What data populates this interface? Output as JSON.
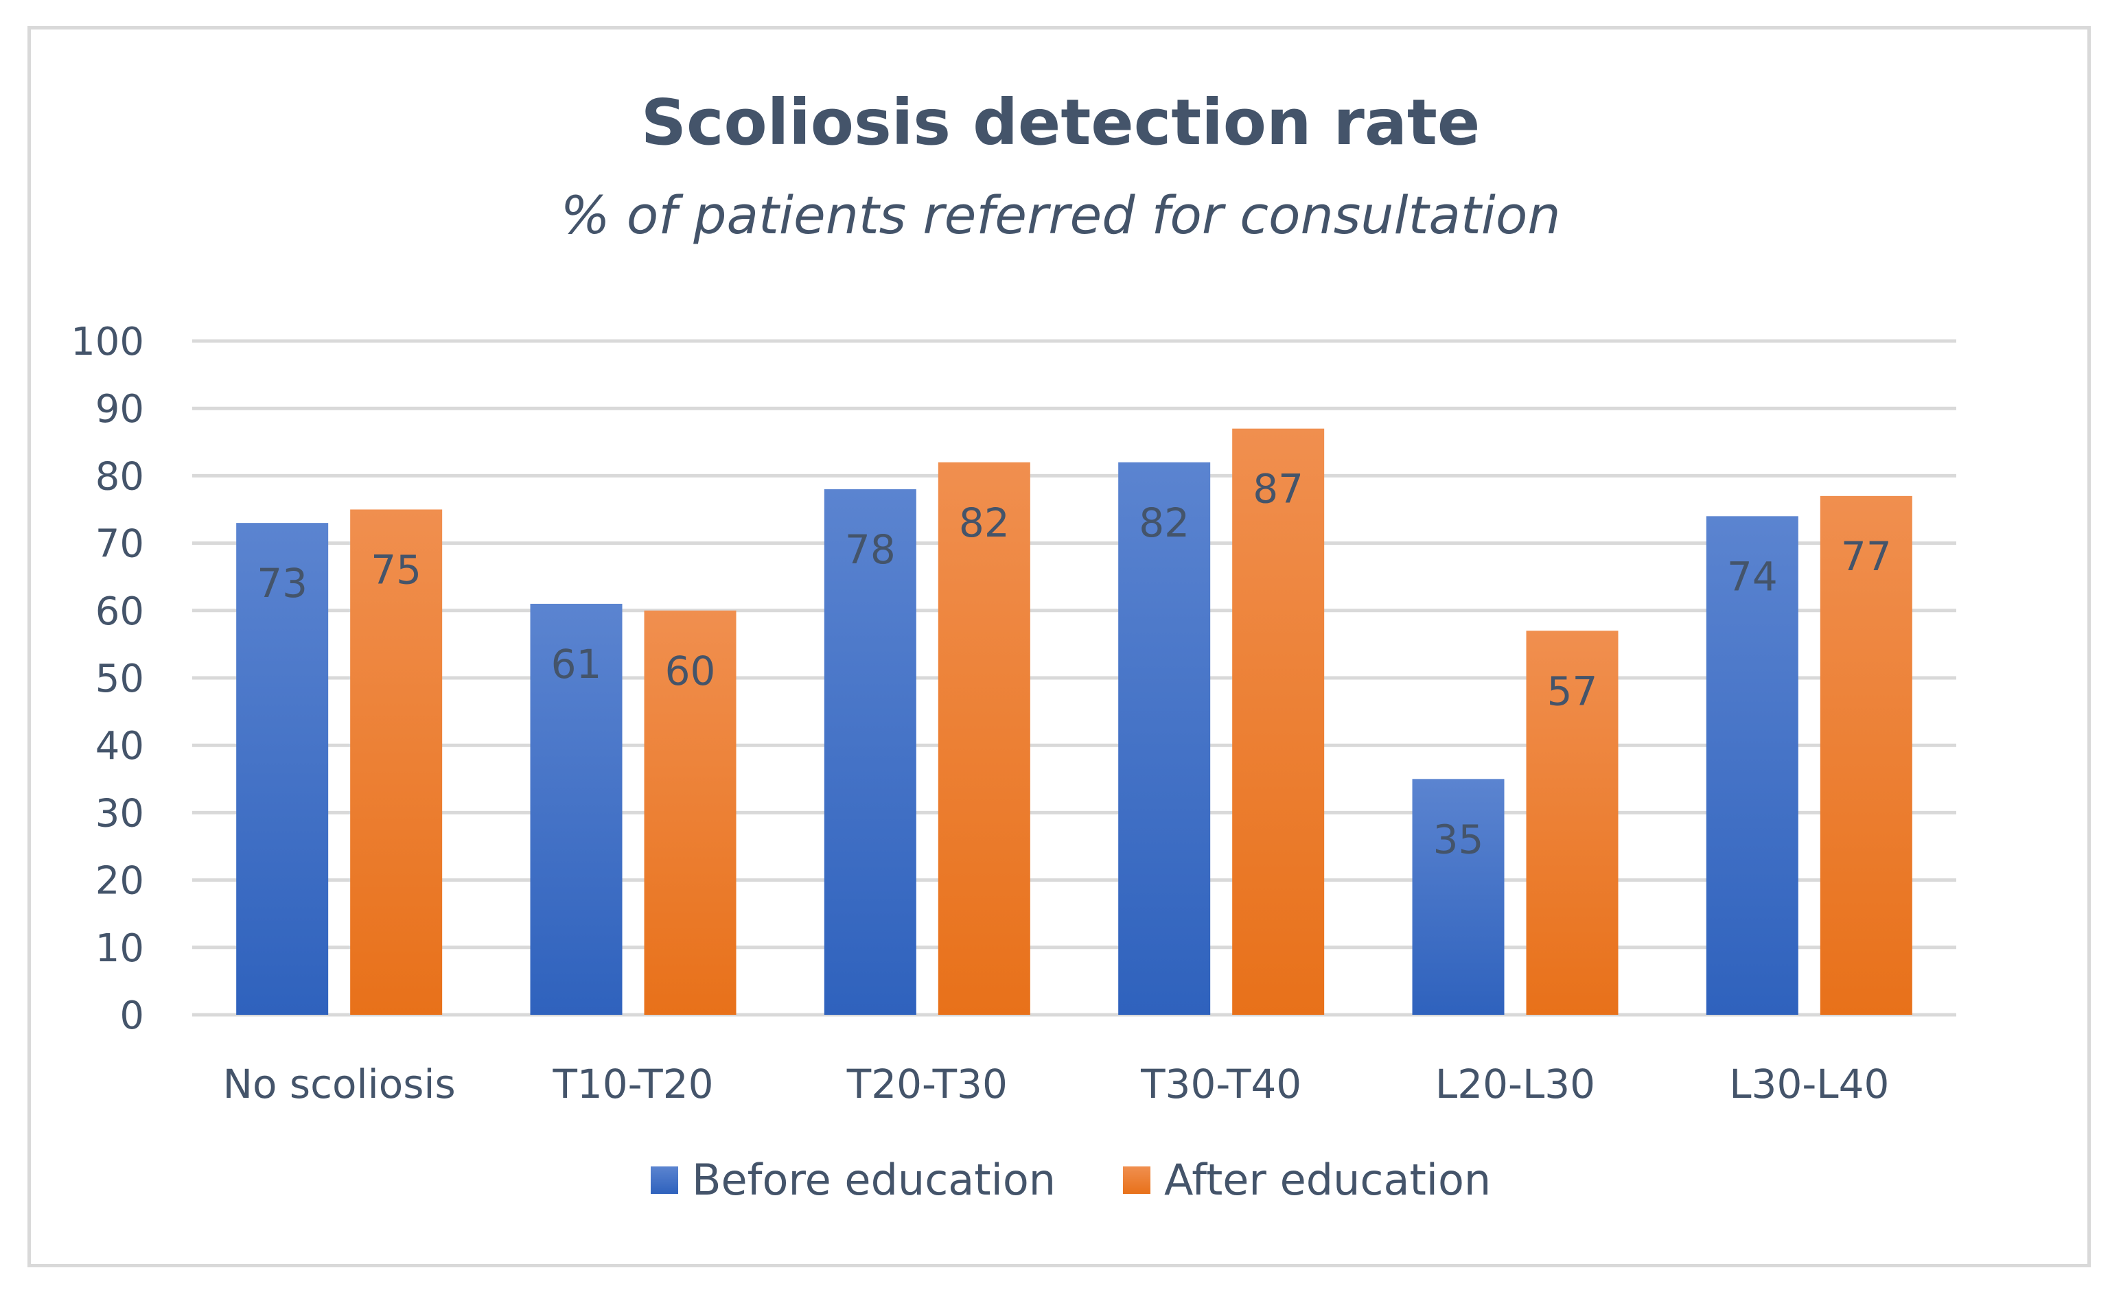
{
  "chart_data": {
    "type": "bar",
    "title": "Scoliosis detection rate",
    "subtitle": "% of patients referred for consultation",
    "categories": [
      "No scoliosis",
      "T10-T20",
      "T20-T30",
      "T30-T40",
      "L20-L30",
      "L30-L40"
    ],
    "series": [
      {
        "name": "Before education",
        "values": [
          73,
          61,
          78,
          82,
          35,
          74
        ],
        "color_top": "#5b84d0",
        "color_bottom": "#2f62bd"
      },
      {
        "name": "After education",
        "values": [
          75,
          60,
          82,
          87,
          57,
          77
        ],
        "color_top": "#f08f4f",
        "color_bottom": "#e8711a"
      }
    ],
    "y_ticks": [
      "0",
      "10",
      "20",
      "30",
      "40",
      "50",
      "60",
      "70",
      "80",
      "90",
      "100"
    ],
    "ylim": [
      0,
      100
    ],
    "xlabel": "",
    "ylabel": "",
    "grid": true,
    "legend_position": "bottom",
    "data_labels": true
  }
}
